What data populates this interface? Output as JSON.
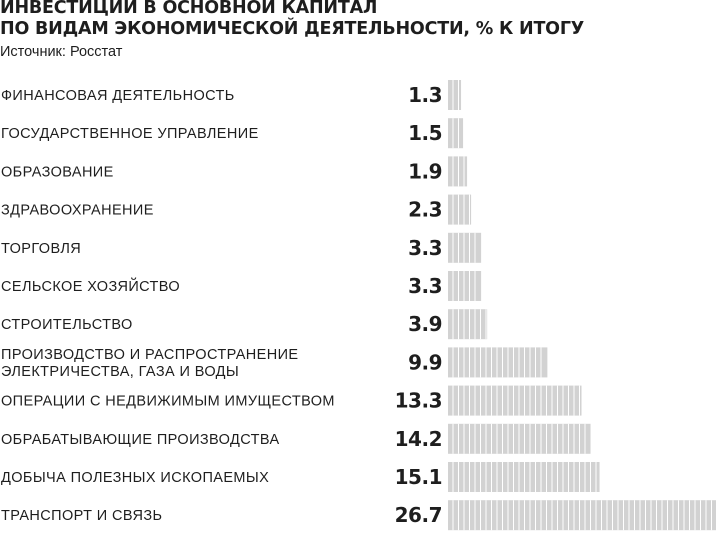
{
  "header": {
    "title_line1": "ИНВЕСТИЦИИ В ОСНОВНОЙ КАПИТАЛ",
    "title_line2": "ПО ВИДАМ ЭКОНОМИЧЕСКОЙ ДЕЯТЕЛЬНОСТИ, % К ИТОГУ",
    "source": "Источник: Росстат"
  },
  "colors": {
    "bar_fill": "#d2d2d2",
    "bar_stripe": "#ffffff",
    "text": "#1e1e1e"
  },
  "chart_data": {
    "type": "bar",
    "orientation": "horizontal",
    "title": "ИНВЕСТИЦИИ В ОСНОВНОЙ КАПИТАЛ ПО ВИДАМ ЭКОНОМИЧЕСКОЙ ДЕЯТЕЛЬНОСТИ, % К ИТОГУ",
    "xlim": [
      0,
      26.7
    ],
    "grid": false,
    "legend": "none",
    "categories": [
      [
        "ФИНАНСОВАЯ ДЕЯТЕЛЬНОСТЬ"
      ],
      [
        "ГОСУДАРСТВЕННОЕ УПРАВЛЕНИЕ"
      ],
      [
        "ОБРАЗОВАНИЕ"
      ],
      [
        "ЗДРАВООХРАНЕНИЕ"
      ],
      [
        "ТОРГОВЛЯ"
      ],
      [
        "СЕЛЬСКОЕ ХОЗЯЙСТВО"
      ],
      [
        "СТРОИТЕЛЬСТВО"
      ],
      [
        "ПРОИЗВОДСТВО И РАСПРОСТРАНЕНИЕ",
        "ЭЛЕКТРИЧЕСТВА, ГАЗА И ВОДЫ"
      ],
      [
        "ОПЕРАЦИИ С НЕДВИЖИМЫМ ИМУЩЕСТВОМ"
      ],
      [
        "ОБРАБАТЫВАЮЩИЕ ПРОИЗВОДСТВА"
      ],
      [
        "ДОБЫЧА ПОЛЕЗНЫХ ИСКОПАЕМЫХ"
      ],
      [
        "ТРАНСПОРТ И СВЯЗЬ"
      ]
    ],
    "values": [
      1.3,
      1.5,
      1.9,
      2.3,
      3.3,
      3.3,
      3.9,
      9.9,
      13.3,
      14.2,
      15.1,
      26.7
    ],
    "value_labels": [
      "1.3",
      "1.5",
      "1.9",
      "2.3",
      "3.3",
      "3.3",
      "3.9",
      "9.9",
      "13.3",
      "14.2",
      "15.1",
      "26.7"
    ]
  }
}
